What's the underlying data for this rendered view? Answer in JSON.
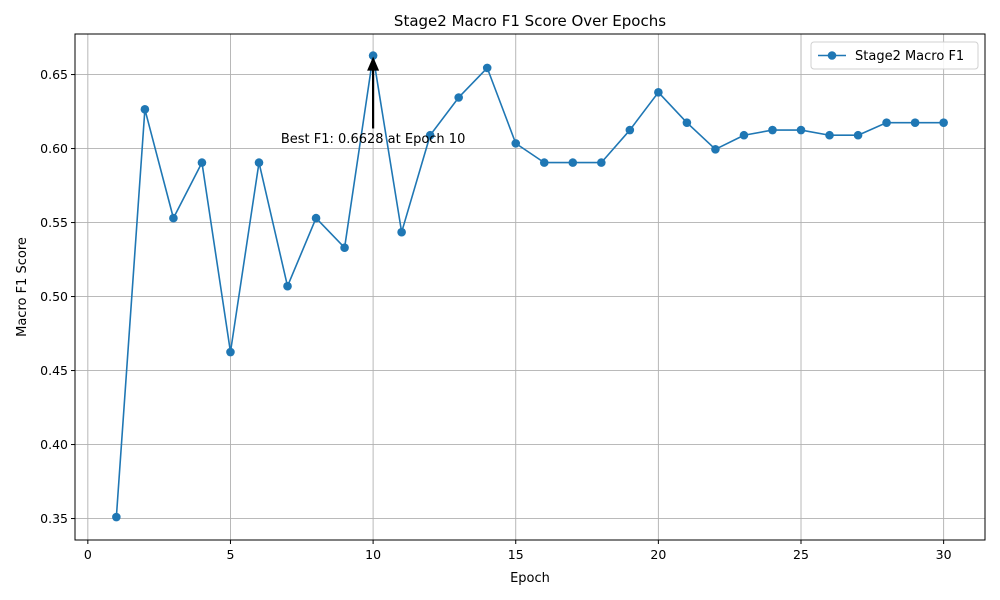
{
  "chart_data": {
    "type": "line",
    "title": "Stage2 Macro F1 Score Over Epochs",
    "xlabel": "Epoch",
    "ylabel": "Macro F1 Score",
    "xlim": [
      -0.45,
      31.45
    ],
    "ylim": [
      0.3355,
      0.6774
    ],
    "xticks": [
      0,
      5,
      10,
      15,
      20,
      25,
      30
    ],
    "xtick_labels": [
      "0",
      "5",
      "10",
      "15",
      "20",
      "25",
      "30"
    ],
    "yticks": [
      0.35,
      0.4,
      0.45,
      0.5,
      0.55,
      0.6,
      0.65
    ],
    "ytick_labels": [
      "0.35",
      "0.40",
      "0.45",
      "0.50",
      "0.55",
      "0.60",
      "0.65"
    ],
    "grid": true,
    "legend_position": "top-right",
    "series": [
      {
        "name": "Stage2 Macro F1",
        "color": "#1f77b4",
        "marker": "circle",
        "x": [
          1,
          2,
          3,
          4,
          5,
          6,
          7,
          8,
          9,
          10,
          11,
          12,
          13,
          14,
          15,
          16,
          17,
          18,
          19,
          20,
          21,
          22,
          23,
          24,
          25,
          26,
          27,
          28,
          29,
          30
        ],
        "values": [
          0.351,
          0.6265,
          0.553,
          0.5905,
          0.4625,
          0.5905,
          0.507,
          0.553,
          0.533,
          0.6628,
          0.5435,
          0.609,
          0.6345,
          0.6545,
          0.6035,
          0.5905,
          0.5905,
          0.5905,
          0.6125,
          0.638,
          0.6175,
          0.5995,
          0.609,
          0.6125,
          0.6125,
          0.609,
          0.609,
          0.6175,
          0.6175,
          0.6175
        ]
      }
    ],
    "annotation": {
      "text": "Best F1: 0.6628 at Epoch 10",
      "point_x": 10,
      "point_y": 0.6628,
      "text_y": 0.6068
    }
  }
}
